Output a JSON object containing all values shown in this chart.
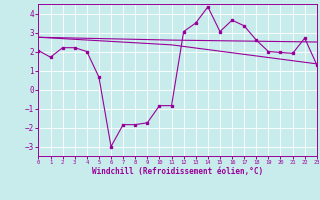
{
  "background_color": "#c8ecec",
  "grid_color": "#b0d8d8",
  "line_color": "#990099",
  "x_min": 0,
  "x_max": 23,
  "y_min": -3.5,
  "y_max": 4.5,
  "yticks": [
    -3,
    -2,
    -1,
    0,
    1,
    2,
    3,
    4
  ],
  "xticks": [
    0,
    1,
    2,
    3,
    4,
    5,
    6,
    7,
    8,
    9,
    10,
    11,
    12,
    13,
    14,
    15,
    16,
    17,
    18,
    19,
    20,
    21,
    22,
    23
  ],
  "xlabel": "Windchill (Refroidissement éolien,°C)",
  "ref_line1_x": [
    0,
    11,
    23
  ],
  "ref_line1_y": [
    2.75,
    2.6,
    2.5
  ],
  "ref_line2_x": [
    0,
    11,
    23
  ],
  "ref_line2_y": [
    2.75,
    2.35,
    1.35
  ],
  "main_x": [
    0,
    1,
    2,
    3,
    4,
    5,
    6,
    7,
    8,
    9,
    10,
    11,
    12,
    13,
    14,
    15,
    16,
    17,
    18,
    19,
    20,
    21,
    22,
    23
  ],
  "main_y": [
    2.05,
    1.7,
    2.2,
    2.2,
    2.0,
    0.65,
    -3.0,
    -1.85,
    -1.85,
    -1.75,
    -0.85,
    -0.85,
    3.05,
    3.5,
    4.35,
    3.05,
    3.65,
    3.35,
    2.6,
    2.0,
    1.95,
    1.9,
    2.7,
    1.3
  ]
}
